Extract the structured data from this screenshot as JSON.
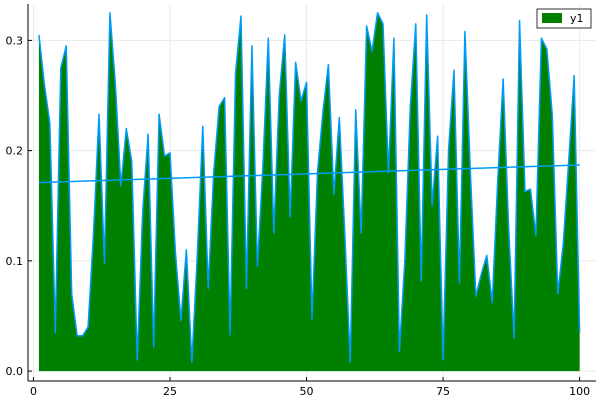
{
  "chart_data": {
    "type": "area",
    "x": [
      1,
      2,
      3,
      4,
      5,
      6,
      7,
      8,
      9,
      10,
      11,
      12,
      13,
      14,
      15,
      16,
      17,
      18,
      19,
      20,
      21,
      22,
      23,
      24,
      25,
      26,
      27,
      28,
      29,
      30,
      31,
      32,
      33,
      34,
      35,
      36,
      37,
      38,
      39,
      40,
      41,
      42,
      43,
      44,
      45,
      46,
      47,
      48,
      49,
      50,
      51,
      52,
      53,
      54,
      55,
      56,
      57,
      58,
      59,
      60,
      61,
      62,
      63,
      64,
      65,
      66,
      67,
      68,
      69,
      70,
      71,
      72,
      73,
      74,
      75,
      76,
      77,
      78,
      79,
      80,
      81,
      82,
      83,
      84,
      85,
      86,
      87,
      88,
      89,
      90,
      91,
      92,
      93,
      94,
      95,
      96,
      97,
      98,
      99,
      100
    ],
    "series": [
      {
        "name": "y1",
        "color": "#008000",
        "edge_color": "#009AFA",
        "values": [
          0.305,
          0.26,
          0.225,
          0.035,
          0.275,
          0.295,
          0.07,
          0.032,
          0.032,
          0.04,
          0.125,
          0.233,
          0.098,
          0.325,
          0.26,
          0.168,
          0.22,
          0.19,
          0.01,
          0.145,
          0.215,
          0.022,
          0.233,
          0.195,
          0.198,
          0.107,
          0.046,
          0.11,
          0.008,
          0.105,
          0.222,
          0.075,
          0.18,
          0.24,
          0.248,
          0.033,
          0.27,
          0.322,
          0.075,
          0.295,
          0.095,
          0.185,
          0.302,
          0.125,
          0.25,
          0.305,
          0.14,
          0.28,
          0.245,
          0.262,
          0.047,
          0.18,
          0.235,
          0.278,
          0.16,
          0.23,
          0.125,
          0.008,
          0.237,
          0.125,
          0.313,
          0.29,
          0.325,
          0.315,
          0.18,
          0.302,
          0.018,
          0.1,
          0.24,
          0.315,
          0.082,
          0.323,
          0.15,
          0.213,
          0.01,
          0.2,
          0.273,
          0.08,
          0.308,
          0.18,
          0.068,
          0.088,
          0.105,
          0.062,
          0.172,
          0.265,
          0.13,
          0.03,
          0.318,
          0.163,
          0.165,
          0.123,
          0.302,
          0.292,
          0.232,
          0.07,
          0.115,
          0.19,
          0.268,
          0.035
        ]
      }
    ],
    "trend": {
      "color": "#009AFA",
      "x": [
        1,
        100
      ],
      "values": [
        0.171,
        0.187
      ]
    },
    "xlim": [
      -1,
      103
    ],
    "ylim": [
      -0.009,
      0.333
    ],
    "xticks": [
      0,
      25,
      50,
      75,
      100
    ],
    "xtick_labels": [
      "0",
      "25",
      "50",
      "75",
      "100"
    ],
    "yticks": [
      0.0,
      0.1,
      0.2,
      0.3
    ],
    "ytick_labels": [
      "0.0",
      "0.1",
      "0.2",
      "0.3"
    ],
    "grid": true,
    "legend": {
      "position": "top-right",
      "label": "y1"
    },
    "title": "",
    "xlabel": "",
    "ylabel": ""
  }
}
